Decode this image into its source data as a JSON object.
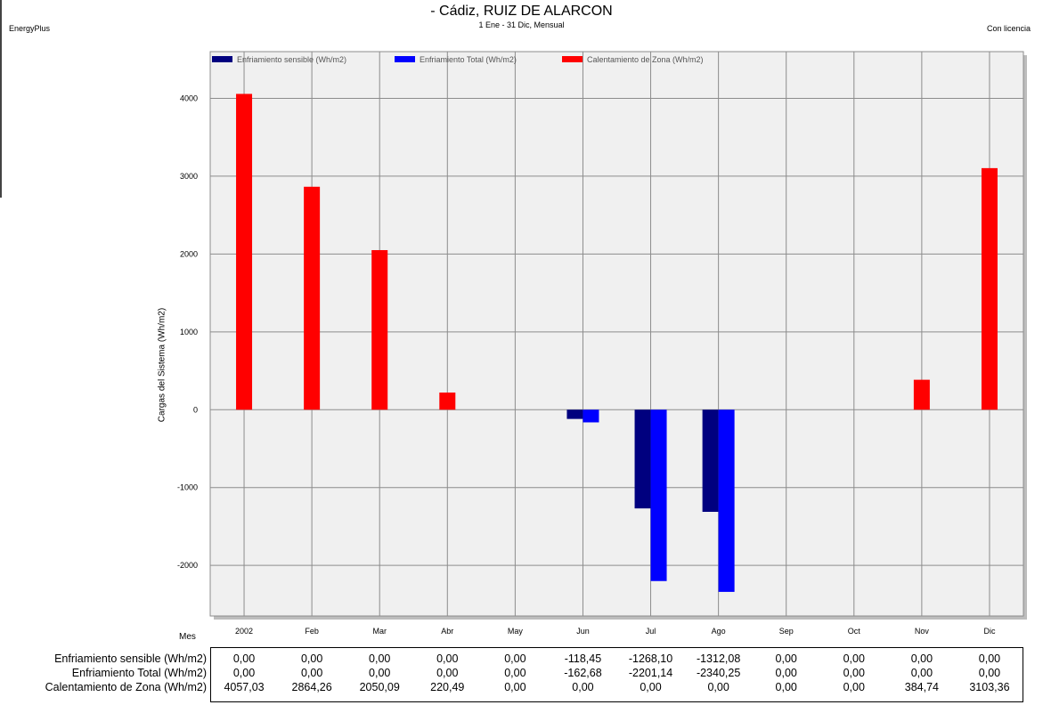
{
  "header": {
    "app_name": "EnergyPlus",
    "title": "- Cádiz, RUIZ DE ALARCON",
    "subtitle": "1 Ene - 31 Dic, Mensual",
    "license": "Con licencia"
  },
  "colors": {
    "enfriamiento_sensible": "#00007f",
    "enfriamiento_total": "#0000ff",
    "calentamiento_zona": "#ff0000",
    "plot_background": "#f0f0f0",
    "grid": "#8c8c8c"
  },
  "chart_data": {
    "type": "bar",
    "ylabel": "Cargas del Sistema (Wh/m2)",
    "xlabel": "Mes",
    "ylim": [
      -2650,
      4600
    ],
    "yticks": [
      -2000,
      -1000,
      0,
      1000,
      2000,
      3000,
      4000
    ],
    "grid": true,
    "legend_position": "top",
    "categories": [
      "2002",
      "Feb",
      "Mar",
      "Abr",
      "May",
      "Jun",
      "Jul",
      "Ago",
      "Sep",
      "Oct",
      "Nov",
      "Dic"
    ],
    "series": [
      {
        "name": "Enfriamiento sensible (Wh/m2)",
        "color": "#00007f",
        "values": [
          0,
          0,
          0,
          0,
          0,
          -118.45,
          -1268.1,
          -1312.08,
          0,
          0,
          0,
          0
        ],
        "labels": [
          "0,00",
          "0,00",
          "0,00",
          "0,00",
          "0,00",
          "-118,45",
          "-1268,10",
          "-1312,08",
          "0,00",
          "0,00",
          "0,00",
          "0,00"
        ]
      },
      {
        "name": "Enfriamiento Total (Wh/m2)",
        "color": "#0000ff",
        "values": [
          0,
          0,
          0,
          0,
          0,
          -162.68,
          -2201.14,
          -2340.25,
          0,
          0,
          0,
          0
        ],
        "labels": [
          "0,00",
          "0,00",
          "0,00",
          "0,00",
          "0,00",
          "-162,68",
          "-2201,14",
          "-2340,25",
          "0,00",
          "0,00",
          "0,00",
          "0,00"
        ]
      },
      {
        "name": "Calentamiento de Zona (Wh/m2)",
        "color": "#ff0000",
        "values": [
          4057.03,
          2864.26,
          2050.09,
          220.49,
          0,
          0,
          0,
          0,
          0,
          0,
          384.74,
          3103.36
        ],
        "labels": [
          "4057,03",
          "2864,26",
          "2050,09",
          "220,49",
          "0,00",
          "0,00",
          "0,00",
          "0,00",
          "0,00",
          "0,00",
          "384,74",
          "3103,36"
        ]
      }
    ]
  }
}
